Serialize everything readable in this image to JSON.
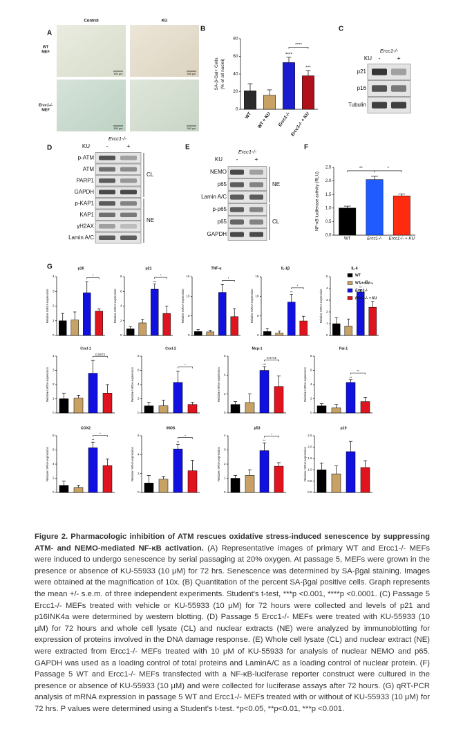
{
  "panel_labels": [
    "A",
    "B",
    "C",
    "D",
    "E",
    "F",
    "G"
  ],
  "panel_a": {
    "columns": [
      "Control",
      "KU"
    ],
    "rows": [
      [
        "WT",
        "MEF"
      ],
      [
        "Ercc1-/-",
        "MEF"
      ]
    ],
    "scale_bar": "500 µm"
  },
  "panel_c": {
    "genotype": "Ercc1-/-",
    "treatment": "KU",
    "lanes": [
      "-",
      "+"
    ],
    "bands": [
      "p21",
      "p16",
      "Tubulin"
    ]
  },
  "panel_d": {
    "genotype": "Ercc1-/-",
    "treatment": "KU",
    "lanes": [
      "-",
      "+"
    ],
    "bands": [
      "p-ATM",
      "ATM",
      "PARP1",
      "GAPDH",
      "p-KAP1",
      "KAP1",
      "γH2AX",
      "Lamin A/C"
    ],
    "groups": [
      "CL",
      "NE"
    ]
  },
  "panel_e": {
    "genotype": "Ercc1-/-",
    "treatment": "KU",
    "lanes": [
      "-",
      "+"
    ],
    "bands": [
      "NEMO",
      "p65",
      "Lamin A/C",
      "p-p65",
      "p65",
      "GAPDH"
    ],
    "groups": [
      "NE",
      "CL"
    ]
  },
  "chart_data": [
    {
      "type": "bar",
      "ylabel": [
        "SA-β-Gal+ Cells",
        "(% of all nuclei)"
      ],
      "categories": [
        "WT",
        "WT + KU",
        "Ercc1-/-",
        "Ercc1-/- + KU"
      ],
      "values": [
        21,
        16,
        53,
        38
      ],
      "errors": [
        8,
        6,
        6,
        6
      ],
      "colors": [
        "#2b2b2b",
        "#c8a165",
        "#1c1ccf",
        "#b0101a"
      ],
      "ylim": [
        0,
        80
      ],
      "yticks": [
        0,
        20,
        40,
        60,
        80
      ],
      "annotations": [
        "****",
        "***",
        "****"
      ]
    },
    {
      "type": "bar",
      "ylabel": [
        "NF-κB luciferase activity (RLU)"
      ],
      "categories": [
        "WT",
        "Ercc1-/-",
        "Ercc1-/- + KU"
      ],
      "values": [
        1.0,
        2.05,
        1.45
      ],
      "errors": [
        0.07,
        0.12,
        0.07
      ],
      "colors": [
        "#000000",
        "#1f5bff",
        "#ff2a10"
      ],
      "ylim": [
        0,
        2.5
      ],
      "yticks": [
        {
          "value": 0,
          "label": "0.0"
        },
        {
          "value": 0.5,
          "label": "0.5"
        },
        {
          "value": 1,
          "label": "1.0"
        },
        {
          "value": 1.5,
          "label": "1.5"
        },
        {
          "value": 2,
          "label": "2.0"
        },
        {
          "value": 2.5,
          "label": "2.5"
        }
      ],
      "annotations": [
        "**",
        "*"
      ]
    },
    {
      "type": "bar",
      "title": "p16",
      "ylabel": [
        "Relative mRNA expression"
      ],
      "values": [
        1.0,
        1.05,
        2.9,
        1.65
      ],
      "errors": [
        0.5,
        0.55,
        0.75,
        0.15
      ],
      "colors": [
        "#000000",
        "#c8a165",
        "#1010e0",
        "#e0141e"
      ],
      "ylim": [
        0,
        4
      ],
      "yticks": [
        0,
        1,
        2,
        3,
        4
      ],
      "annotations": [
        "*"
      ]
    },
    {
      "type": "bar",
      "title": "p21",
      "ylabel": [
        "Relative mRNA expression"
      ],
      "values": [
        0.9,
        1.7,
        6.3,
        3.0
      ],
      "errors": [
        0.3,
        0.5,
        0.7,
        1.0
      ],
      "colors": [
        "#000000",
        "#c8a165",
        "#1010e0",
        "#e0141e"
      ],
      "ylim": [
        0,
        8
      ],
      "yticks": [
        0,
        2,
        4,
        6,
        8
      ],
      "annotations": [
        "***",
        "*"
      ]
    },
    {
      "type": "bar",
      "title": "TNF-α",
      "ylabel": [
        "Relative mRNA expression"
      ],
      "values": [
        1.0,
        0.9,
        11,
        4.8
      ],
      "errors": [
        0.5,
        0.4,
        2.0,
        2.0
      ],
      "colors": [
        "#000000",
        "#c8a165",
        "#1010e0",
        "#e0141e"
      ],
      "ylim": [
        0,
        15
      ],
      "yticks": [
        0,
        5,
        10,
        15
      ],
      "annotations": [
        "*"
      ]
    },
    {
      "type": "bar",
      "title": "IL-1β",
      "ylabel": [
        "Relative mRNA expression"
      ],
      "values": [
        1.0,
        0.6,
        8.5,
        3.7
      ],
      "errors": [
        0.8,
        0.5,
        2.0,
        1.2
      ],
      "colors": [
        "#000000",
        "#c8a165",
        "#1010e0",
        "#e0141e"
      ],
      "ylim": [
        0,
        15
      ],
      "yticks": [
        0,
        5,
        10,
        15
      ],
      "annotations": [
        "**",
        "*"
      ]
    },
    {
      "type": "bar",
      "title": "IL-6",
      "ylabel": [
        "Relative mRNA expression"
      ],
      "values": [
        1.0,
        0.8,
        3.7,
        2.4
      ],
      "errors": [
        0.5,
        0.6,
        0.2,
        0.5
      ],
      "colors": [
        "#000000",
        "#c8a165",
        "#1010e0",
        "#e0141e"
      ],
      "ylim": [
        0,
        5
      ],
      "yticks": [
        0,
        1,
        2,
        3,
        4,
        5
      ],
      "annotations": [
        "**",
        "**"
      ]
    },
    {
      "type": "bar",
      "title": "Cxcl-1",
      "ylabel": [
        "Relative mRNA expression"
      ],
      "values": [
        1.0,
        1.05,
        2.8,
        1.4
      ],
      "errors": [
        0.4,
        0.2,
        0.9,
        0.6
      ],
      "colors": [
        "#000000",
        "#c8a165",
        "#1010e0",
        "#e0141e"
      ],
      "ylim": [
        0,
        4
      ],
      "yticks": [
        0,
        1,
        2,
        3,
        4
      ],
      "annotations": [
        "0.0672"
      ]
    },
    {
      "type": "bar",
      "title": "Cxcl-2",
      "ylabel": [
        "Relative mRNA expression"
      ],
      "values": [
        1.0,
        1.0,
        4.3,
        1.2
      ],
      "errors": [
        0.5,
        0.8,
        1.6,
        0.3
      ],
      "colors": [
        "#000000",
        "#c8a165",
        "#1010e0",
        "#e0141e"
      ],
      "ylim": [
        0,
        8
      ],
      "yticks": [
        0,
        2,
        4,
        6,
        8
      ],
      "annotations": [
        "*"
      ]
    },
    {
      "type": "bar",
      "title": "Mcp-1",
      "ylabel": [
        "Relative mRNA expression"
      ],
      "values": [
        0.9,
        1.1,
        4.5,
        2.8
      ],
      "errors": [
        0.3,
        0.9,
        0.4,
        1.1
      ],
      "colors": [
        "#000000",
        "#c8a165",
        "#1010e0",
        "#e0141e"
      ],
      "ylim": [
        0,
        6
      ],
      "yticks": [
        0,
        2,
        4,
        6
      ],
      "annotations": [
        "***",
        "0.0715"
      ]
    },
    {
      "type": "bar",
      "title": "Pai-1",
      "ylabel": [
        "Relative mRNA expression"
      ],
      "values": [
        1.0,
        0.7,
        4.3,
        1.6
      ],
      "errors": [
        0.3,
        0.5,
        0.4,
        0.6
      ],
      "colors": [
        "#000000",
        "#c8a165",
        "#1010e0",
        "#e0141e"
      ],
      "ylim": [
        0,
        8
      ],
      "yticks": [
        0,
        2,
        4,
        6,
        8
      ],
      "annotations": [
        "**",
        "**"
      ]
    },
    {
      "type": "bar",
      "title": "COX2",
      "ylabel": [
        "Relative mRNA expression"
      ],
      "values": [
        1.0,
        0.7,
        6.3,
        3.8
      ],
      "errors": [
        0.6,
        0.3,
        0.8,
        0.9
      ],
      "colors": [
        "#000000",
        "#c8a165",
        "#1010e0",
        "#e0141e"
      ],
      "ylim": [
        0,
        8
      ],
      "yticks": [
        0,
        2,
        4,
        6,
        8
      ],
      "annotations": [
        "**",
        "*"
      ]
    },
    {
      "type": "bar",
      "title": "iNOS",
      "ylabel": [
        "Relative mRNA expression"
      ],
      "values": [
        1.0,
        1.4,
        4.6,
        2.3
      ],
      "errors": [
        0.8,
        0.3,
        0.5,
        1.1
      ],
      "colors": [
        "#000000",
        "#c8a165",
        "#1010e0",
        "#e0141e"
      ],
      "ylim": [
        0,
        6
      ],
      "yticks": [
        0,
        2,
        4,
        6
      ],
      "annotations": [
        "**",
        "*"
      ]
    },
    {
      "type": "bar",
      "title": "p53",
      "ylabel": [
        "Relative mRNA expression"
      ],
      "values": [
        1.0,
        1.2,
        2.95,
        1.85
      ],
      "errors": [
        0.2,
        0.4,
        0.55,
        0.25
      ],
      "colors": [
        "#000000",
        "#c8a165",
        "#1010e0",
        "#e0141e"
      ],
      "ylim": [
        0,
        4
      ],
      "yticks": [
        0,
        1,
        2,
        3,
        4
      ],
      "annotations": [
        "**",
        "*"
      ]
    },
    {
      "type": "bar",
      "title": "p19",
      "ylabel": [
        "Relative mRNA expression"
      ],
      "values": [
        1.0,
        0.82,
        1.8,
        1.1
      ],
      "errors": [
        0.3,
        0.35,
        0.45,
        0.3
      ],
      "colors": [
        "#000000",
        "#c8a165",
        "#1010e0",
        "#e0141e"
      ],
      "ylim": [
        0,
        2.5
      ],
      "yticks": [
        {
          "value": 0,
          "label": "0.0"
        },
        {
          "value": 0.5,
          "label": "0.5"
        },
        {
          "value": 1,
          "label": "1.0"
        },
        {
          "value": 1.5,
          "label": "1.5"
        },
        {
          "value": 2,
          "label": "2.0"
        },
        {
          "value": 2.5,
          "label": "2.5"
        }
      ],
      "annotations": []
    }
  ],
  "legend": {
    "names": [
      "WT",
      "WT + KU",
      "Ercc1-/-",
      "Ercc1-/- + KU"
    ],
    "colors": [
      "#000000",
      "#c8a165",
      "#1010e0",
      "#e0141e"
    ]
  },
  "caption": {
    "title": "Figure 2. Pharmacologic inhibition of ATM rescues oxidative stress-induced senescence by suppressing ATM- and NEMO-mediated NF-κB activation.",
    "body": "(A) Representative images of primary WT and Ercc1-/- MEFs were induced to undergo senescence by serial passaging at 20% oxygen. At passage 5, MEFs were grown in the presence or absence of KU-55933 (10 μM) for 72 hrs. Senescence was determined by SA-βgal staining. Images were obtained at the magnification of 10x. (B) Quantitation of the percent SA-βgal positive cells. Graph represents the mean +/- s.e.m. of three independent experiments. Student's t-test, ***p <0.001, ****p <0.0001. (C) Passage 5 Ercc1-/- MEFs treated with vehicle or KU-55933 (10 μM) for 72 hours were collected and levels of p21 and p16INK4a were determined by western blotting. (D) Passage 5 Ercc1-/- MEFs were treated with KU-55933 (10 μM) for 72 hours and whole cell lysate (CL) and nuclear extracts (NE) were analyzed by immunoblotting for expression of proteins involved in the DNA damage response. (E) Whole cell lysate (CL) and nuclear extract (NE) were extracted from Ercc1-/- MEFs treated with 10 μM of KU-55933 for analysis of nuclear NEMO and p65. GAPDH was used as a loading control of total proteins and LaminA/C as a loading control of nuclear protein. (F) Passage 5 WT and Ercc1-/- MEFs transfected with a NF-κB-luciferase reporter construct were cultured in the presence or absence of KU-55933 (10 μM) and were collected for luciferase assays after 72 hours. (G) qRT-PCR analysis of mRNA expression in passage 5 WT and Ercc1-/- MEFs treated with or without of KU-55933 (10 μM) for 72 hrs. P values were determined using a Student's t-test. *p<0.05, **p<0.01, ***p <0.001."
  }
}
